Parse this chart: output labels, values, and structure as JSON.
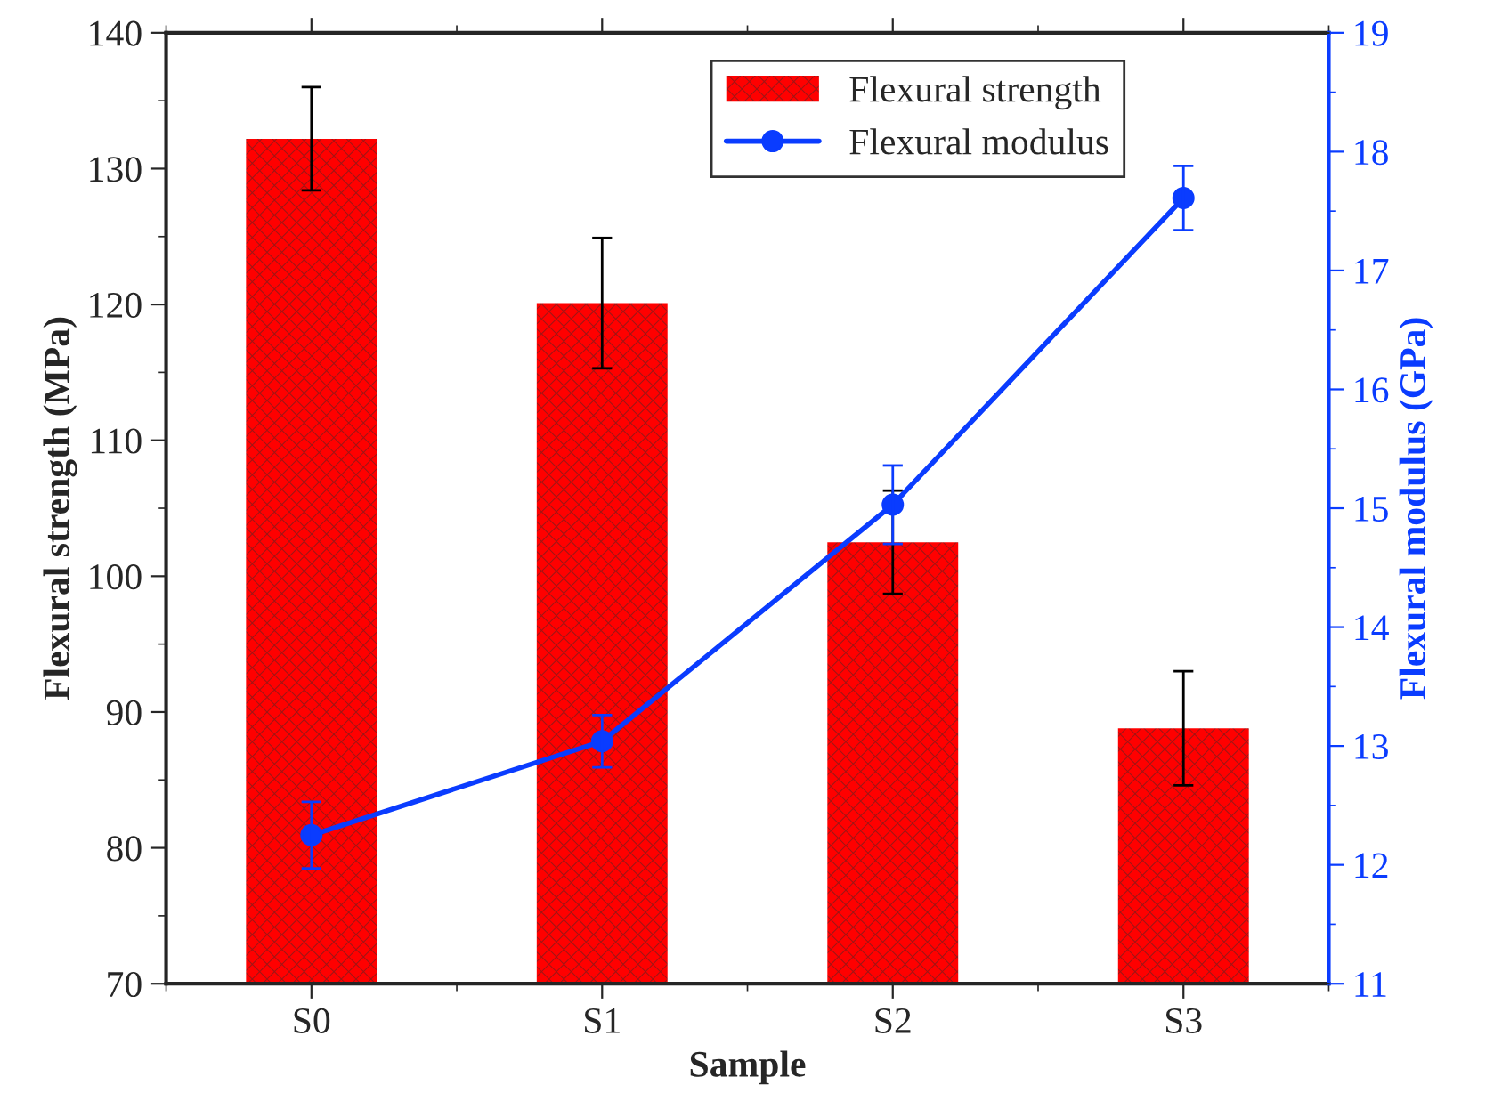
{
  "chart_data": {
    "type": "bar",
    "xlabel": "Sample",
    "ylabel": "Flexural strength (MPa)",
    "y2label": "Flexural modulus (GPa)",
    "categories": [
      "S0",
      "S1",
      "S2",
      "S3"
    ],
    "series": [
      {
        "name": "Flexural strength",
        "color": "#ff0000",
        "values": [
          132.2,
          120.1,
          102.5,
          88.8
        ],
        "errors": [
          3.8,
          4.8,
          3.8,
          4.2
        ]
      },
      {
        "name": "Flexural modulus",
        "type": "line",
        "axis": "y2",
        "color": "#0a3cff",
        "marker": "circle",
        "line_style": "solid",
        "values": [
          12.25,
          13.04,
          15.03,
          17.61
        ],
        "errors": [
          0.28,
          0.22,
          0.33,
          0.27
        ]
      }
    ],
    "ylim": [
      70,
      140
    ],
    "yticks": [
      70,
      80,
      90,
      100,
      110,
      120,
      130,
      140
    ],
    "y2lim": [
      11,
      19
    ],
    "y2ticks": [
      11,
      12,
      13,
      14,
      15,
      16,
      17,
      18,
      19
    ],
    "legend": "top right",
    "grid": false
  }
}
